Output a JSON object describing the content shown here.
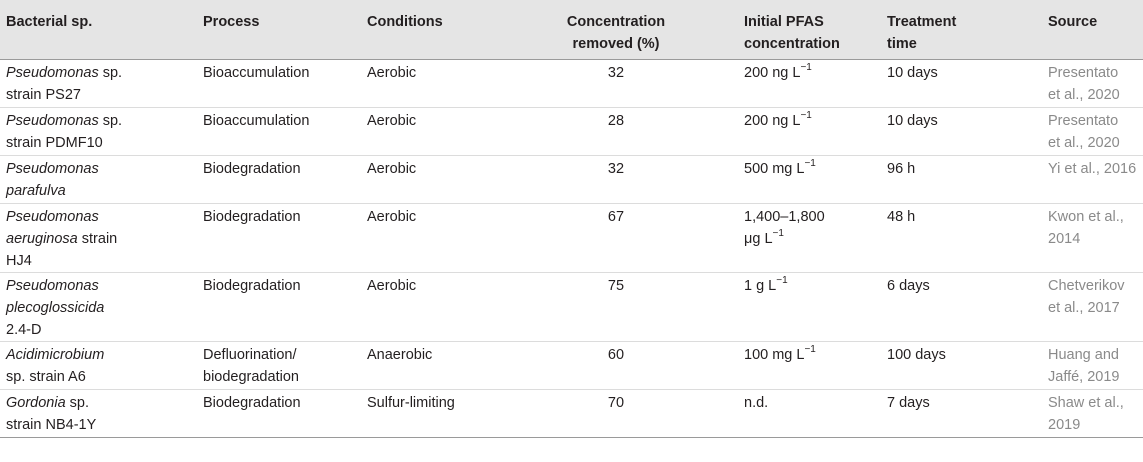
{
  "table": {
    "headers": {
      "bacterial_sp": "Bacterial sp.",
      "process": "Process",
      "conditions": "Conditions",
      "concentration_removed_line1": "Concentration",
      "concentration_removed_line2": "removed (%)",
      "initial_pfas_line1": "Initial PFAS",
      "initial_pfas_line2": "concentration",
      "treatment_time_line1": "Treatment",
      "treatment_time_line2": "time",
      "source": "Source"
    },
    "rows": [
      {
        "species_italic": "Pseudomonas",
        "species_rest": " sp.",
        "species_line2": "strain PS27",
        "species_line3": "",
        "process_line1": "Bioaccumulation",
        "process_line2": "",
        "conditions": "Aerobic",
        "concentration_removed": "32",
        "initial_conc_line1": "200 ng L",
        "initial_conc_sup": "−1",
        "initial_conc_line2": "",
        "initial_conc_line2_sup": "",
        "treatment_time": "10 days",
        "source_line1": "Presentato",
        "source_line2": "et al., 2020"
      },
      {
        "species_italic": "Pseudomonas",
        "species_rest": " sp.",
        "species_line2": "strain PDMF10",
        "species_line3": "",
        "process_line1": "Bioaccumulation",
        "process_line2": "",
        "conditions": "Aerobic",
        "concentration_removed": "28",
        "initial_conc_line1": "200 ng L",
        "initial_conc_sup": "−1",
        "initial_conc_line2": "",
        "initial_conc_line2_sup": "",
        "treatment_time": "10 days",
        "source_line1": "Presentato",
        "source_line2": "et al., 2020"
      },
      {
        "species_italic": "Pseudomonas",
        "species_rest": "",
        "species_line2": "parafulva",
        "species_line2_italic": true,
        "species_line3": "",
        "process_line1": "Biodegradation",
        "process_line2": "",
        "conditions": "Aerobic",
        "concentration_removed": "32",
        "initial_conc_line1": "500 mg L",
        "initial_conc_sup": "−1",
        "initial_conc_line2": "",
        "initial_conc_line2_sup": "",
        "treatment_time": "96 h",
        "source_line1": "Yi et al., 2016",
        "source_line2": ""
      },
      {
        "species_italic": "Pseudomonas",
        "species_rest": "",
        "species_line2_italic_part": "aeruginosa",
        "species_line2": " strain",
        "species_line3": "HJ4",
        "process_line1": "Biodegradation",
        "process_line2": "",
        "conditions": "Aerobic",
        "concentration_removed": "67",
        "initial_conc_line1": "1,400–1,800",
        "initial_conc_sup": "",
        "initial_conc_line2": "μg L",
        "initial_conc_line2_sup": "−1",
        "treatment_time": "48 h",
        "source_line1": "Kwon et al.,",
        "source_line2": "2014"
      },
      {
        "species_italic": "Pseudomonas",
        "species_rest": "",
        "species_line2_italic_part": "plecoglossicida",
        "species_line2": "",
        "species_line3": "2.4-D",
        "process_line1": "Biodegradation",
        "process_line2": "",
        "conditions": "Aerobic",
        "concentration_removed": "75",
        "initial_conc_line1": "1 g L",
        "initial_conc_sup": "−1",
        "initial_conc_line2": "",
        "initial_conc_line2_sup": "",
        "treatment_time": "6 days",
        "source_line1": "Chetverikov",
        "source_line2": "et al., 2017"
      },
      {
        "species_italic": "Acidimicrobium",
        "species_rest": "",
        "species_line2": "sp. strain A6",
        "species_line3": "",
        "process_line1": "Defluorination/",
        "process_line2": "biodegradation",
        "conditions": "Anaerobic",
        "concentration_removed": "60",
        "initial_conc_line1": "100 mg L",
        "initial_conc_sup": "−1",
        "initial_conc_line2": "",
        "initial_conc_line2_sup": "",
        "treatment_time": "100 days",
        "source_line1": "Huang and",
        "source_line2": "Jaffé, 2019"
      },
      {
        "species_italic": "Gordonia",
        "species_rest": " sp.",
        "species_line2": "strain NB4-1Y",
        "species_line3": "",
        "process_line1": "Biodegradation",
        "process_line2": "",
        "conditions": "Sulfur-limiting",
        "concentration_removed": "70",
        "initial_conc_line1": "n.d.",
        "initial_conc_sup": "",
        "initial_conc_line2": "",
        "initial_conc_line2_sup": "",
        "treatment_time": "7 days",
        "source_line1": "Shaw et al.,",
        "source_line2": "2019"
      }
    ]
  },
  "colors": {
    "header_bg": "#e5e5e5",
    "text": "#231f20",
    "source_text": "#8a8a8a",
    "rule": "#9a9a9a"
  }
}
